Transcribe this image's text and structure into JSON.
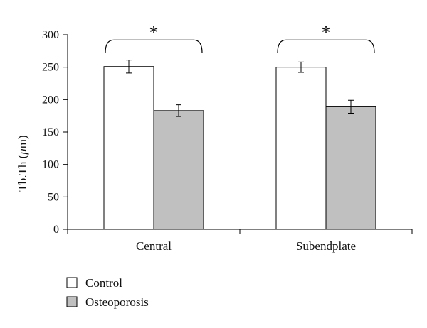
{
  "chart_data": {
    "type": "bar",
    "ylabel": "Tb.Th (",
    "ylabel_mu": "μ",
    "ylabel_unit": "m)",
    "ylim": [
      0,
      300
    ],
    "yticks": [
      "0",
      "50",
      "100",
      "150",
      "200",
      "250",
      "300"
    ],
    "categories": [
      "Central",
      "Subendplate"
    ],
    "series": [
      {
        "name": "Control",
        "values": [
          251,
          250
        ],
        "errors": [
          10,
          8
        ],
        "color": "#ffffff"
      },
      {
        "name": "Osteoporosis",
        "values": [
          183,
          189
        ],
        "errors": [
          9,
          10
        ],
        "color": "#c0c0c0"
      }
    ],
    "significance": [
      "*",
      "*"
    ],
    "legend_position": "bottom-left",
    "grid": false
  }
}
